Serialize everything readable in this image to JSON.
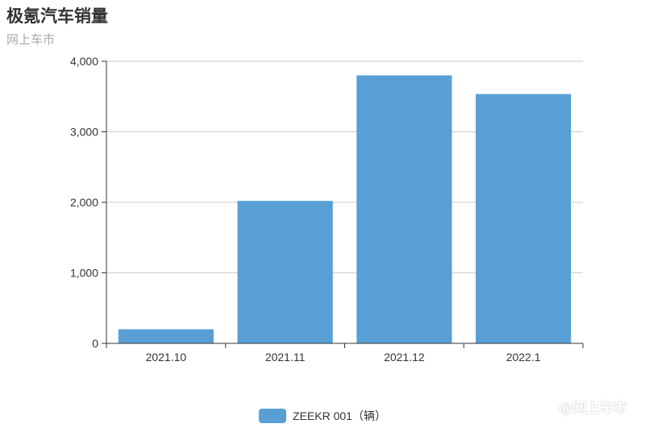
{
  "title": "极氪汽车销量",
  "subtitle": "网上车市",
  "watermark": "@网上车市",
  "chart_data": {
    "type": "bar",
    "title": "极氪汽车销量",
    "subtitle": "网上车市",
    "categories": [
      "2021.10",
      "2021.11",
      "2021.12",
      "2022.1"
    ],
    "series": [
      {
        "name": "ZEEKR 001（辆）",
        "values": [
          200,
          2020,
          3800,
          3535
        ],
        "color": "#589fd5"
      }
    ],
    "ylim": [
      0,
      4000
    ],
    "yticks": [
      0,
      1000,
      2000,
      3000,
      4000
    ],
    "ytick_labels": [
      "0",
      "1,000",
      "2,000",
      "3,000",
      "4,000"
    ],
    "grid": true,
    "legend": "bottom-center",
    "colors": {
      "bar": "#589fd5",
      "grid": "#cccccc",
      "axis": "#333333"
    }
  }
}
